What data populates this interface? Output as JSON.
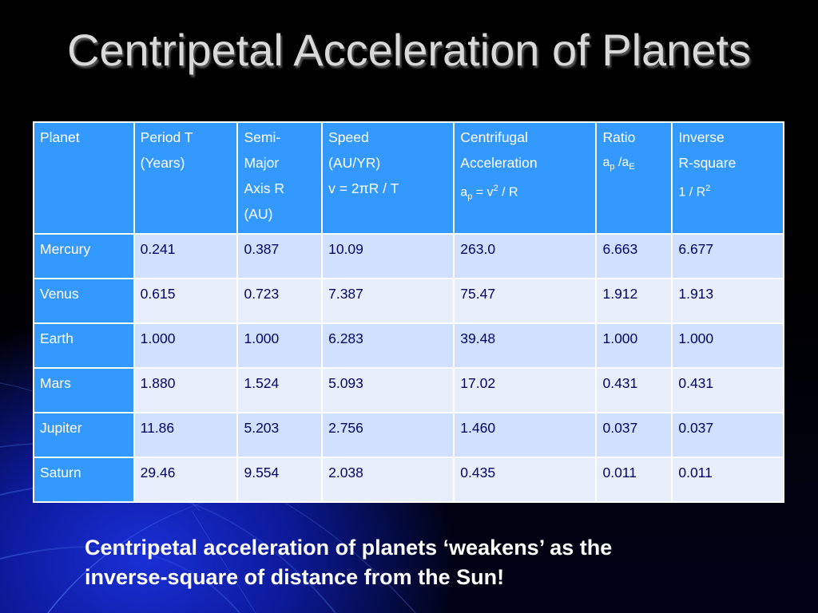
{
  "slide": {
    "title": "Centripetal Acceleration of Planets",
    "caption_line1": "Centripetal acceleration of planets ‘weakens’ as the",
    "caption_line2": "inverse-square of distance from the Sun!"
  },
  "table": {
    "headers": [
      {
        "lines": [
          "Planet"
        ]
      },
      {
        "lines": [
          "Period T",
          "(Years)"
        ]
      },
      {
        "lines": [
          "Semi-",
          "Major",
          "Axis R",
          "(AU)"
        ]
      },
      {
        "lines": [
          "Speed",
          "(AU/YR)",
          "v = 2πR / T"
        ]
      },
      {
        "lines": [
          "Centrifugal",
          "Acceleration"
        ],
        "formula": {
          "a": "a",
          "sub": "p",
          "mid": " = v",
          "sup": "2",
          "tail": " / R"
        }
      },
      {
        "lines": [
          "Ratio"
        ],
        "formula": {
          "a": "a",
          "sub": "p",
          "mid": " /a",
          "sub2": "E"
        }
      },
      {
        "lines": [
          "Inverse",
          "R-square"
        ],
        "formula": {
          "a": "1 / R",
          "sup": "2"
        }
      }
    ],
    "rows": [
      [
        "Mercury",
        "0.241",
        "0.387",
        "10.09",
        "263.0",
        "6.663",
        "6.677"
      ],
      [
        "Venus",
        "0.615",
        "0.723",
        "7.387",
        "75.47",
        "1.912",
        "1.913"
      ],
      [
        "Earth",
        "1.000",
        "1.000",
        "6.283",
        "39.48",
        "1.000",
        "1.000"
      ],
      [
        "Mars",
        "1.880",
        "1.524",
        "5.093",
        "17.02",
        "0.431",
        "0.431"
      ],
      [
        "Jupiter",
        "11.86",
        "5.203",
        "2.756",
        "1.460",
        "0.037",
        "0.037"
      ],
      [
        "Saturn",
        "29.46",
        "9.554",
        "2.038",
        "0.435",
        "0.011",
        "0.011"
      ]
    ]
  },
  "colors": {
    "header_bg": "#3399ff",
    "row_odd_bg": "#cfe1ff",
    "row_even_bg": "#e8eefc",
    "value_text": "#000066",
    "title_text": "#d9d9d9"
  }
}
